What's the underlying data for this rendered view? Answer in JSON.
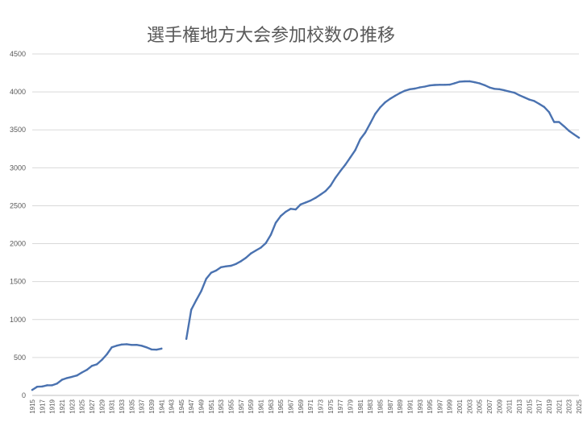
{
  "chart_data": {
    "type": "line",
    "title": "選手権地方大会参加校数の推移",
    "xlabel": "",
    "ylabel": "",
    "ylim": [
      0,
      4500
    ],
    "xlim": [
      1915,
      2025
    ],
    "y_ticks": [
      0,
      500,
      1000,
      1500,
      2000,
      2500,
      3000,
      3500,
      4000,
      4500
    ],
    "x_tick_labels": [
      "1915",
      "1917",
      "1919",
      "1921",
      "1923",
      "1925",
      "1927",
      "1929",
      "1931",
      "1933",
      "1935",
      "1937",
      "1939",
      "1941",
      "1943",
      "1945",
      "1947",
      "1949",
      "1951",
      "1953",
      "1955",
      "1957",
      "1959",
      "1961",
      "1963",
      "1965",
      "1967",
      "1969",
      "1971",
      "1973",
      "1975",
      "1977",
      "1979",
      "1981",
      "1983",
      "1985",
      "1987",
      "1989",
      "1991",
      "1993",
      "1995",
      "1997",
      "1999",
      "2001",
      "2003",
      "2005",
      "2007",
      "2009",
      "2011",
      "2013",
      "2015",
      "2017",
      "2019",
      "2021",
      "2023",
      "2025"
    ],
    "grid": true,
    "legend": "none",
    "color": "#4a72b0",
    "series": [
      {
        "x": [
          1915,
          1916,
          1917,
          1918,
          1919,
          1920,
          1921,
          1922,
          1923,
          1924,
          1925,
          1926,
          1927,
          1928,
          1929,
          1930,
          1931,
          1932,
          1933,
          1934,
          1935,
          1936,
          1937,
          1938,
          1939,
          1940,
          1941
        ],
        "y": [
          73,
          115,
          118,
          134,
          134,
          157,
          207,
          229,
          245,
          263,
          302,
          337,
          389,
          410,
          468,
          541,
          634,
          656,
          671,
          675,
          665,
          666,
          655,
          634,
          606,
          603,
          617
        ]
      },
      {
        "x": [
          1946,
          1947,
          1948,
          1949,
          1950,
          1951,
          1952,
          1953,
          1954,
          1955,
          1956,
          1957,
          1958,
          1959,
          1960,
          1961,
          1962,
          1963,
          1964,
          1965,
          1966,
          1967,
          1968,
          1969,
          1970,
          1971,
          1972,
          1973,
          1974,
          1975,
          1976,
          1977,
          1978,
          1979,
          1980,
          1981,
          1982,
          1983,
          1984,
          1985,
          1986,
          1987,
          1988,
          1989,
          1990,
          1991,
          1992,
          1993,
          1994,
          1995,
          1996,
          1997,
          1998,
          1999,
          2000,
          2001,
          2002,
          2003,
          2004,
          2005,
          2006,
          2007,
          2008,
          2009,
          2010,
          2011,
          2012,
          2013,
          2014,
          2015,
          2016,
          2017,
          2018,
          2019,
          2020,
          2021,
          2022,
          2023,
          2024,
          2025
        ],
        "y": [
          745,
          1129,
          1256,
          1376,
          1536,
          1617,
          1646,
          1690,
          1701,
          1709,
          1733,
          1769,
          1814,
          1871,
          1910,
          1948,
          2007,
          2117,
          2276,
          2365,
          2420,
          2459,
          2451,
          2516,
          2542,
          2568,
          2603,
          2647,
          2693,
          2763,
          2868,
          2957,
          3041,
          3137,
          3233,
          3376,
          3464,
          3584,
          3709,
          3796,
          3862,
          3909,
          3948,
          3985,
          4016,
          4035,
          4044,
          4060,
          4070,
          4085,
          4091,
          4093,
          4093,
          4096,
          4114,
          4135,
          4139,
          4140,
          4127,
          4113,
          4089,
          4059,
          4040,
          4035,
          4021,
          4004,
          3989,
          3957,
          3928,
          3899,
          3880,
          3842,
          3802,
          3733,
          3603,
          3603,
          3547,
          3486,
          3441,
          3396
        ]
      }
    ]
  }
}
